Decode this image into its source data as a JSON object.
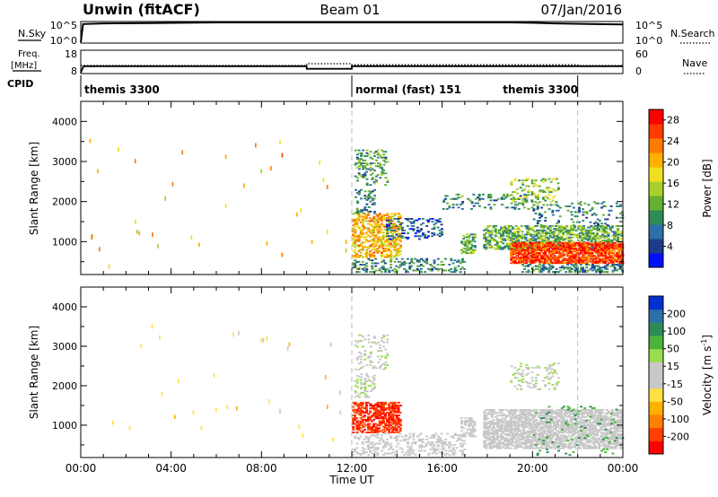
{
  "header": {
    "station": "Unwin (fitACF)",
    "beam": "Beam 01",
    "date": "07/Jan/2016"
  },
  "noise_panel": {
    "left_label": "N.Sky",
    "left_ticks": [
      "10^5",
      "10^0"
    ],
    "right_ticks": [
      "10^5",
      "10^0"
    ],
    "right_label": "N.Search",
    "sky_series": [
      [
        0.0,
        0.0
      ],
      [
        0.1,
        0.92
      ],
      [
        1.0,
        0.95
      ],
      [
        3.0,
        0.97
      ],
      [
        6.0,
        1.0
      ],
      [
        11.9,
        1.0
      ],
      [
        12.0,
        1.0
      ],
      [
        19.0,
        1.0
      ],
      [
        20.0,
        0.98
      ],
      [
        21.0,
        0.95
      ],
      [
        22.5,
        0.92
      ],
      [
        24.0,
        0.9
      ]
    ]
  },
  "freq_panel": {
    "left_label_top": "Freq.",
    "left_label_units": "[MHz]",
    "left_ticks": [
      "18",
      "8"
    ],
    "right_ticks": [
      "60",
      "0"
    ],
    "right_label": "Nave",
    "freq_series": [
      [
        0.0,
        8.0
      ],
      [
        0.12,
        11.0
      ],
      [
        10.0,
        11.0
      ],
      [
        10.0,
        9.8
      ],
      [
        12.0,
        9.8
      ],
      [
        12.0,
        11.0
      ],
      [
        22.0,
        11.0
      ],
      [
        24.0,
        11.0
      ]
    ],
    "nave_series": [
      [
        0.0,
        20
      ],
      [
        0.12,
        20
      ],
      [
        10.0,
        20
      ],
      [
        10.0,
        25
      ],
      [
        12.0,
        25
      ],
      [
        12.0,
        22
      ],
      [
        22.0,
        22
      ],
      [
        22.0,
        20
      ],
      [
        24.0,
        20
      ]
    ]
  },
  "cpid": {
    "label": "CPID",
    "segments": [
      {
        "start": 0.0,
        "end": 12.0,
        "text": "themis 3300"
      },
      {
        "start": 12.0,
        "end": 22.0,
        "text": "normal (fast) 151"
      },
      {
        "start": 22.0,
        "end": 24.0,
        "text": "themis 3300"
      }
    ]
  },
  "chart_data": [
    {
      "type": "heatmap",
      "title": "",
      "xlabel": "",
      "ylabel": "Slant Range [km]",
      "xlim": [
        0,
        24
      ],
      "ylim": [
        180,
        4500
      ],
      "yticks": [
        1000,
        2000,
        3000,
        4000
      ],
      "colorbar": {
        "label": "Power [dB]",
        "ticks": [
          4,
          8,
          12,
          16,
          20,
          24,
          28
        ],
        "range": [
          0,
          30
        ],
        "colors": [
          "#0010ff",
          "#1e3a8a",
          "#2e6fa8",
          "#2e8b57",
          "#66b032",
          "#a8d02c",
          "#f0e020",
          "#ffb000",
          "#ff7a00",
          "#ff3a00",
          "#ff0000"
        ]
      },
      "regions": [
        {
          "t0": 0.2,
          "t1": 11.8,
          "r0": 400,
          "r1": 3600,
          "value": 20,
          "density": 0.0025
        },
        {
          "t0": 12.0,
          "t1": 14.2,
          "r0": 600,
          "r1": 1700,
          "value": 20,
          "density": 0.55
        },
        {
          "t0": 12.1,
          "t1": 13.6,
          "r0": 2400,
          "r1": 3300,
          "value": 10,
          "density": 0.28
        },
        {
          "t0": 12.1,
          "t1": 13.0,
          "r0": 1700,
          "r1": 2300,
          "value": 8,
          "density": 0.3
        },
        {
          "t0": 13.5,
          "t1": 16.0,
          "r0": 1050,
          "r1": 1600,
          "value": 6,
          "density": 0.25
        },
        {
          "t0": 12.0,
          "t1": 17.0,
          "r0": 230,
          "r1": 600,
          "value": 9,
          "density": 0.3
        },
        {
          "t0": 16.8,
          "t1": 17.5,
          "r0": 700,
          "r1": 1200,
          "value": 12,
          "density": 0.55
        },
        {
          "t0": 16.0,
          "t1": 20.0,
          "r0": 1800,
          "r1": 2200,
          "value": 9,
          "density": 0.18
        },
        {
          "t0": 19.0,
          "t1": 21.2,
          "r0": 1900,
          "r1": 2600,
          "value": 14,
          "density": 0.22
        },
        {
          "t0": 17.8,
          "t1": 24.0,
          "r0": 800,
          "r1": 1400,
          "value": 12,
          "density": 0.55
        },
        {
          "t0": 19.0,
          "t1": 24.0,
          "r0": 450,
          "r1": 1000,
          "value": 26,
          "density": 0.8
        },
        {
          "t0": 19.5,
          "t1": 24.0,
          "r0": 230,
          "r1": 450,
          "value": 8,
          "density": 0.45
        },
        {
          "t0": 20.0,
          "t1": 24.0,
          "r0": 1400,
          "r1": 2000,
          "value": 8,
          "density": 0.12
        }
      ]
    },
    {
      "type": "heatmap",
      "title": "",
      "xlabel": "Time UT",
      "ylabel": "Slant Range [km]",
      "xlim": [
        0,
        24
      ],
      "ylim": [
        180,
        4500
      ],
      "yticks": [
        1000,
        2000,
        3000,
        4000
      ],
      "xticks": [
        0,
        4,
        8,
        12,
        16,
        20,
        24
      ],
      "xticklabels": [
        "00:00",
        "04:00",
        "08:00",
        "12:00",
        "16:00",
        "20:00",
        "00:00"
      ],
      "colorbar": {
        "label": "Velocity [m s^-1]",
        "ticks": [
          200,
          100,
          50,
          15,
          -15,
          -50,
          -100,
          -200
        ],
        "range": [
          -250,
          250
        ],
        "colors": [
          "#ff0000",
          "#ff4000",
          "#ff8000",
          "#ffb000",
          "#ffe040",
          "#c8c8c8",
          "#c8c8c8",
          "#9adc50",
          "#4cb43c",
          "#2e8b57",
          "#2e6fa8",
          "#0030d0"
        ]
      },
      "regions": [
        {
          "t0": 0.2,
          "t1": 11.8,
          "r0": 400,
          "r1": 3600,
          "value": -60,
          "density": 0.0025
        },
        {
          "t0": 12.0,
          "t1": 14.2,
          "r0": 800,
          "r1": 1600,
          "value": -200,
          "density": 0.6
        },
        {
          "t0": 12.1,
          "t1": 13.6,
          "r0": 2400,
          "r1": 3300,
          "value": 30,
          "density": 0.2
        },
        {
          "t0": 12.1,
          "t1": 13.0,
          "r0": 1700,
          "r1": 2300,
          "value": 30,
          "density": 0.25
        },
        {
          "t0": 12.0,
          "t1": 17.0,
          "r0": 230,
          "r1": 800,
          "value": 0,
          "density": 0.3
        },
        {
          "t0": 16.8,
          "t1": 17.5,
          "r0": 700,
          "r1": 1200,
          "value": 0,
          "density": 0.5
        },
        {
          "t0": 19.0,
          "t1": 21.2,
          "r0": 1900,
          "r1": 2600,
          "value": 30,
          "density": 0.2
        },
        {
          "t0": 17.8,
          "t1": 24.0,
          "r0": 400,
          "r1": 1400,
          "value": 0,
          "density": 0.7
        },
        {
          "t0": 20.0,
          "t1": 24.0,
          "r0": 230,
          "r1": 1500,
          "value": 120,
          "density": 0.05
        }
      ]
    }
  ]
}
